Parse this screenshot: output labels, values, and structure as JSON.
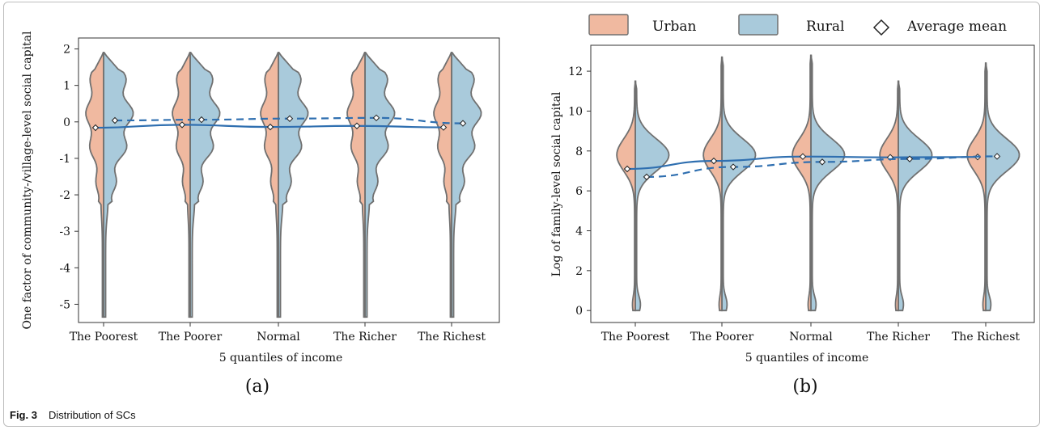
{
  "figure": {
    "caption_label": "Fig. 3",
    "caption_text": "Distribution of SCs"
  },
  "legend": {
    "urban_label": "Urban",
    "rural_label": "Rural",
    "mean_label": "Average mean",
    "urban_color": "#f0b9a0",
    "rural_color": "#a9cadb",
    "line_color": "#2f6fb0",
    "outline_color": "#707070"
  },
  "chart_data": [
    {
      "type": "violin",
      "panel_label": "(a)",
      "xlabel": "5 quantiles of income",
      "ylabel": "One factor of community-/village-level social capital",
      "categories": [
        "The Poorest",
        "The Poorer",
        "Normal",
        "The Richer",
        "The Richest"
      ],
      "ylim": [
        -5.5,
        2.3
      ],
      "yticks": [
        2,
        1,
        0,
        -1,
        -2,
        -3,
        -4,
        -5
      ],
      "grid": false,
      "series": [
        {
          "name": "Urban",
          "means": [
            -0.16,
            -0.08,
            -0.14,
            -0.11,
            -0.15
          ]
        },
        {
          "name": "Rural",
          "means": [
            0.04,
            0.06,
            0.09,
            0.11,
            -0.04
          ]
        }
      ]
    },
    {
      "type": "violin",
      "panel_label": "(b)",
      "xlabel": "5 quantiles of income",
      "ylabel": "Log of family-level social capital",
      "categories": [
        "The Poorest",
        "The Poorer",
        "Normal",
        "The Richer",
        "The Richest"
      ],
      "ylim": [
        -0.6,
        13.3
      ],
      "yticks": [
        0,
        2,
        4,
        6,
        8,
        10,
        12
      ],
      "grid": false,
      "series": [
        {
          "name": "Urban",
          "means": [
            7.1,
            7.5,
            7.72,
            7.68,
            7.7
          ]
        },
        {
          "name": "Rural",
          "means": [
            6.7,
            7.2,
            7.45,
            7.6,
            7.73
          ]
        }
      ]
    }
  ]
}
